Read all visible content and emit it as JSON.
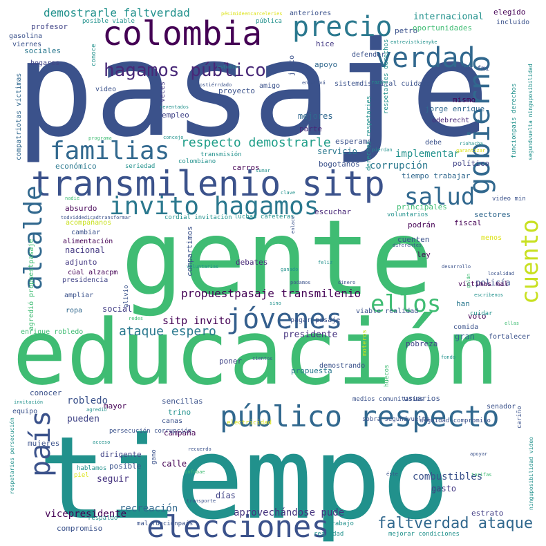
{
  "chart_data": {
    "type": "wordcloud",
    "words": [
      {
        "text": "pasaje",
        "weight": 100
      },
      {
        "text": "gente",
        "weight": 96
      },
      {
        "text": "educación",
        "weight": 93
      },
      {
        "text": "tiempo",
        "weight": 93
      },
      {
        "text": "transmilenio sitp",
        "weight": 42
      },
      {
        "text": "colombia",
        "weight": 40
      },
      {
        "text": "elecciones",
        "weight": 38
      },
      {
        "text": "público respecto",
        "weight": 37
      },
      {
        "text": "gobierno",
        "weight": 35
      },
      {
        "text": "verdad",
        "weight": 34
      },
      {
        "text": "precio",
        "weight": 34
      },
      {
        "text": "país",
        "weight": 33
      },
      {
        "text": "jóvenes",
        "weight": 32
      },
      {
        "text": "familias",
        "weight": 31
      },
      {
        "text": "invito hagamos",
        "weight": 31
      },
      {
        "text": "alcalde",
        "weight": 30
      },
      {
        "text": "cuento",
        "weight": 30
      },
      {
        "text": "salud",
        "weight": 29
      },
      {
        "text": "ellos",
        "weight": 28
      },
      {
        "text": "hagamos público",
        "weight": 22
      },
      {
        "text": "faltverdad ataque",
        "weight": 20
      },
      {
        "text": "respecto demostrarle",
        "weight": 18
      },
      {
        "text": "ataque espero",
        "weight": 18
      },
      {
        "text": "propuestpasaje transmilenio",
        "weight": 15
      },
      {
        "text": "demostrarle faltverdad",
        "weight": 15
      },
      {
        "text": "sitp invito",
        "weight": 14
      },
      {
        "text": "corrupción",
        "weight": 13
      },
      {
        "text": "implementar",
        "weight": 13
      },
      {
        "text": "recreación",
        "weight": 13
      },
      {
        "text": "robledo",
        "weight": 13
      },
      {
        "text": "combustibles",
        "weight": 13
      },
      {
        "text": "aprovechándose pude",
        "weight": 13
      },
      {
        "text": "vicepresidente",
        "weight": 13
      },
      {
        "text": "internacional",
        "weight": 12
      },
      {
        "text": "presidente",
        "weight": 12
      },
      {
        "text": "pueden",
        "weight": 12
      },
      {
        "text": "seguir",
        "weight": 12
      },
      {
        "text": "mejores",
        "weight": 11
      },
      {
        "text": "servicio",
        "weight": 11
      },
      {
        "text": "nacional",
        "weight": 11
      },
      {
        "text": "social",
        "weight": 11
      },
      {
        "text": "calle",
        "weight": 11
      },
      {
        "text": "días",
        "weight": 11
      },
      {
        "text": "gasto",
        "weight": 11
      },
      {
        "text": "policía",
        "weight": 11
      },
      {
        "text": "gran",
        "weight": 11
      },
      {
        "text": "estrato",
        "weight": 10
      },
      {
        "text": "profesor",
        "weight": 10
      },
      {
        "text": "sociales",
        "weight": 10
      },
      {
        "text": "económico",
        "weight": 10
      },
      {
        "text": "bogotanos",
        "weight": 10
      },
      {
        "text": "jorge enrique",
        "weight": 10
      },
      {
        "text": "podrán",
        "weight": 10
      },
      {
        "text": "voto",
        "weight": 10
      },
      {
        "text": "han",
        "weight": 10
      },
      {
        "text": "propuesta",
        "weight": 10
      },
      {
        "text": "pobreza",
        "weight": 10
      },
      {
        "text": "posible",
        "weight": 10
      },
      {
        "text": "dirigente",
        "weight": 10
      },
      {
        "text": "campaña",
        "weight": 10
      },
      {
        "text": "absurdo",
        "weight": 10
      },
      {
        "text": "adjunto",
        "weight": 10
      },
      {
        "text": "ley",
        "weight": 10
      },
      {
        "text": "principales",
        "weight": 10
      },
      {
        "text": "cuenten",
        "weight": 10
      },
      {
        "text": "compromiso",
        "weight": 10
      },
      {
        "text": "fiscal",
        "weight": 10
      },
      {
        "text": "sectores",
        "weight": 10
      },
      {
        "text": "tiempo trabajar",
        "weight": 10
      },
      {
        "text": "hice",
        "weight": 10
      },
      {
        "text": "apoyo",
        "weight": 10
      },
      {
        "text": "petro",
        "weight": 10
      },
      {
        "text": "oportunidades",
        "weight": 10
      },
      {
        "text": "mismo",
        "weight": 10
      },
      {
        "text": "parte",
        "weight": 10
      },
      {
        "text": "esperamos",
        "weight": 10
      },
      {
        "text": "carros",
        "weight": 10
      },
      {
        "text": "político",
        "weight": 10
      },
      {
        "text": "escuchar",
        "weight": 10
      },
      {
        "text": "debates",
        "weight": 10
      },
      {
        "text": "compartimos",
        "weight": 10
      },
      {
        "text": "elegido",
        "weight": 10
      },
      {
        "text": "empleo",
        "weight": 10
      },
      {
        "text": "proyecto",
        "weight": 10
      },
      {
        "text": "conocer",
        "weight": 10
      },
      {
        "text": "mujeres",
        "weight": 10
      },
      {
        "text": "sencillas",
        "weight": 10
      },
      {
        "text": "trino",
        "weight": 10
      },
      {
        "text": "mayor",
        "weight": 10
      },
      {
        "text": "usuarios",
        "weight": 10
      },
      {
        "text": "poner",
        "weight": 10
      },
      {
        "text": "presidencia",
        "weight": 9
      },
      {
        "text": "enrique robledo",
        "weight": 9
      },
      {
        "text": "víctimas mal",
        "weight": 9
      },
      {
        "text": "ropa",
        "weight": 9
      },
      {
        "text": "veces",
        "weight": 9
      },
      {
        "text": "odebrecht",
        "weight": 9
      },
      {
        "text": "sistemdistrital cuidado",
        "weight": 9
      },
      {
        "text": "amigo",
        "weight": 9
      },
      {
        "text": "anteriores",
        "weight": 9
      },
      {
        "text": "defender",
        "weight": 9
      },
      {
        "text": "junto",
        "weight": 9
      },
      {
        "text": "hogares",
        "weight": 9
      },
      {
        "text": "gasolina",
        "weight": 9
      },
      {
        "text": "viernes",
        "weight": 9
      },
      {
        "text": "video",
        "weight": 9
      },
      {
        "text": "debe",
        "weight": 9
      },
      {
        "text": "demostrando",
        "weight": 9
      },
      {
        "text": "menos",
        "weight": 9
      },
      {
        "text": "alimentación",
        "weight": 9
      },
      {
        "text": "cambiar",
        "weight": 9
      },
      {
        "text": "acompáñanos",
        "weight": 9
      },
      {
        "text": "cúal alzacpm",
        "weight": 9
      },
      {
        "text": "ampliar",
        "weight": 9
      },
      {
        "text": "equipo",
        "weight": 9
      },
      {
        "text": "incluido",
        "weight": 9
      },
      {
        "text": "orden fmi",
        "weight": 9
      },
      {
        "text": "pagar pasaje",
        "weight": 9
      },
      {
        "text": "viable realidad",
        "weight": 9
      },
      {
        "text": "comida",
        "weight": 9
      },
      {
        "text": "fortalecer",
        "weight": 9
      },
      {
        "text": "senador",
        "weight": 9
      },
      {
        "text": "canas",
        "weight": 9
      },
      {
        "text": "medios comunitarios",
        "weight": 8
      },
      {
        "text": "sobra segundvuelta",
        "weight": 8
      },
      {
        "text": "dignidad compromiso",
        "weight": 8
      },
      {
        "text": "mejorar condiciones",
        "weight": 8
      },
      {
        "text": "realidad",
        "weight": 8
      },
      {
        "text": "trabajo",
        "weight": 8
      },
      {
        "text": "mal funcionpaís",
        "weight": 8
      },
      {
        "text": "respaldo",
        "weight": 8
      },
      {
        "text": "piel",
        "weight": 8
      },
      {
        "text": "hablamos",
        "weight": 8
      },
      {
        "text": "aval",
        "weight": 8
      },
      {
        "text": "gano",
        "weight": 8
      },
      {
        "text": "electricidad",
        "weight": 8
      },
      {
        "text": "persecución corrupción",
        "weight": 8
      },
      {
        "text": "luchas cafeteras",
        "weight": 8
      },
      {
        "text": "cordial invitación",
        "weight": 8
      },
      {
        "text": "seriedad",
        "weight": 8
      },
      {
        "text": "colombiano",
        "weight": 8
      },
      {
        "text": "transmisión",
        "weight": 8
      },
      {
        "text": "voluntarios",
        "weight": 8
      },
      {
        "text": "alivio",
        "weight": 8
      },
      {
        "text": "cuidar",
        "weight": 8
      },
      {
        "text": "pública",
        "weight": 8
      },
      {
        "text": "posible viable",
        "weight": 8
      },
      {
        "text": "conoce",
        "weight": 8
      },
      {
        "text": "video min",
        "weight": 8
      },
      {
        "text": "cariño",
        "weight": 8
      },
      {
        "text": "huecos",
        "weight": 8
      },
      {
        "text": "moteros",
        "weight": 8
      },
      {
        "text": "agredió propuestpasaje",
        "weight": 8
      },
      {
        "text": "compatriotas víctimas",
        "weight": 8
      },
      {
        "text": "respetaries derechos",
        "weight": 8
      },
      {
        "text": "derechos respetaries",
        "weight": 8
      },
      {
        "text": "funcionpaís derechos",
        "weight": 8
      },
      {
        "text": "segundvuelta ninguposibilidad",
        "weight": 7
      },
      {
        "text": "ninguposibilidad video",
        "weight": 7
      },
      {
        "text": "respetaries persecución",
        "weight": 7
      },
      {
        "text": "pésimideencarceleries",
        "weight": 7
      },
      {
        "text": "entrevistkienyke",
        "weight": 7
      },
      {
        "text": "estudios",
        "weight": 7
      },
      {
        "text": "hermostiérrdado",
        "weight": 7
      },
      {
        "text": "reventados",
        "weight": 7
      },
      {
        "text": "engativá",
        "weight": 7
      },
      {
        "text": "razón",
        "weight": 7
      },
      {
        "text": "programa",
        "weight": 7
      },
      {
        "text": "concejo",
        "weight": 7
      },
      {
        "text": "todviddedicadtransformar",
        "weight": 7
      },
      {
        "text": "nadie",
        "weight": 7
      },
      {
        "text": "clave",
        "weight": 7
      },
      {
        "text": "sumar",
        "weight": 7
      },
      {
        "text": "pierdan",
        "weight": 7
      },
      {
        "text": "riohacha",
        "weight": 7
      },
      {
        "text": "garantizar",
        "weight": 7
      },
      {
        "text": "enlace",
        "weight": 7
      },
      {
        "text": "diferentes",
        "weight": 7
      },
      {
        "text": "ganado",
        "weight": 7
      },
      {
        "text": "feliz",
        "weight": 7
      },
      {
        "text": "voluntarias",
        "weight": 7
      },
      {
        "text": "desarrollo",
        "weight": 7
      },
      {
        "text": "localidad",
        "weight": 7
      },
      {
        "text": "galán",
        "weight": 7
      },
      {
        "text": "podamos",
        "weight": 7
      },
      {
        "text": "dinero",
        "weight": 7
      },
      {
        "text": "sino",
        "weight": 7
      },
      {
        "text": "escribenos",
        "weight": 7
      },
      {
        "text": "ellas",
        "weight": 7
      },
      {
        "text": "redes",
        "weight": 7
      },
      {
        "text": "fondo",
        "weight": 7
      },
      {
        "text": "cientos",
        "weight": 7
      },
      {
        "text": "invitación",
        "weight": 7
      },
      {
        "text": "agredió",
        "weight": 7
      },
      {
        "text": "acceso",
        "weight": 7
      },
      {
        "text": "recuerdo",
        "weight": 7
      },
      {
        "text": "infobae",
        "weight": 7
      },
      {
        "text": "transporte",
        "weight": 7
      },
      {
        "text": "apoyar",
        "weight": 7
      },
      {
        "text": "éste",
        "weight": 7
      },
      {
        "text": "tarifas",
        "weight": 7
      }
    ]
  }
}
